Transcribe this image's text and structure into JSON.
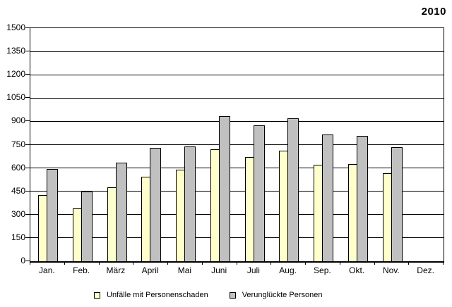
{
  "chart_data": {
    "type": "bar",
    "title": "2010",
    "categories": [
      "Jan.",
      "Feb.",
      "März",
      "April",
      "Mai",
      "Juni",
      "Juli",
      "Aug.",
      "Sep.",
      "Okt.",
      "Nov.",
      "Dez."
    ],
    "series": [
      {
        "name": "Unfälle mit Personenschaden",
        "color": "#FFFFCC",
        "values": [
          425,
          340,
          475,
          545,
          590,
          720,
          670,
          710,
          620,
          625,
          565,
          null
        ]
      },
      {
        "name": "Verunglückte Personen",
        "color": "#C0C0C0",
        "values": [
          595,
          450,
          635,
          730,
          740,
          935,
          875,
          920,
          815,
          805,
          735,
          null
        ]
      }
    ],
    "ylim": [
      0,
      1500
    ],
    "yticks": [
      0,
      150,
      300,
      450,
      600,
      750,
      900,
      1050,
      1200,
      1350,
      1500
    ],
    "grid": "horizontal",
    "legend_position": "bottom",
    "axis_color": "#000000",
    "bar_border_color": "#000000",
    "background": "#FFFFFF"
  }
}
